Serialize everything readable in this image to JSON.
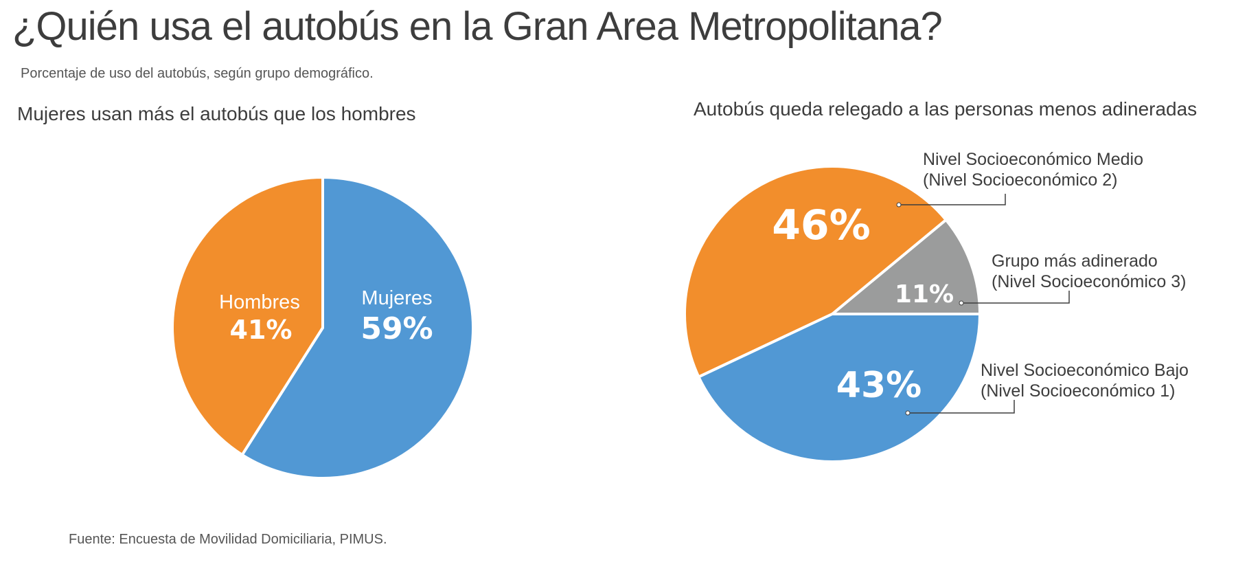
{
  "page": {
    "title": "¿Quién usa el autobús en la Gran Area Metropolitana?",
    "subtitle": "Porcentaje de uso del autobús, según grupo demográfico.",
    "source": "Fuente: Encuesta de Movilidad Domiciliaria, PIMUS."
  },
  "colors": {
    "blue": "#5198d4",
    "orange": "#f28e2c",
    "gray": "#9b9c9c",
    "text": "#3d3d3d"
  },
  "chart_data": [
    {
      "type": "pie",
      "title": "Mujeres usan más el autobús que los hombres",
      "slices": [
        {
          "name": "Mujeres",
          "value": 59,
          "label": "59%",
          "color": "#5198d4"
        },
        {
          "name": "Hombres",
          "value": 41,
          "label": "41%",
          "color": "#f28e2c"
        }
      ]
    },
    {
      "type": "pie",
      "title": "Autobús queda relegado  a las personas menos adineradas",
      "slices": [
        {
          "name_line1": "Grupo más adinerado",
          "name_line2": "(Nivel Socioeconómico 3)",
          "value": 11,
          "label": "11%",
          "color": "#9b9c9c"
        },
        {
          "name_line1": "Nivel Socioeconómico Medio",
          "name_line2": "(Nivel Socioeconómico 2)",
          "value": 46,
          "label": "46%",
          "color": "#f28e2c"
        },
        {
          "name_line1": "Nivel Socioeconómico Bajo",
          "name_line2": "(Nivel Socioeconómico 1)",
          "value": 43,
          "label": "43%",
          "color": "#5198d4"
        }
      ]
    }
  ]
}
